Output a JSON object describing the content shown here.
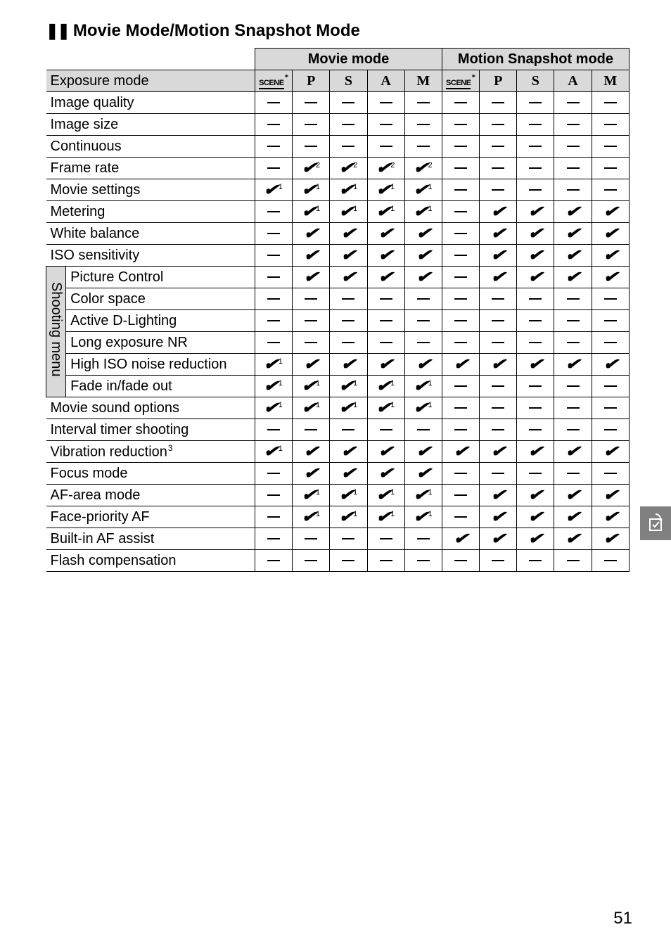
{
  "section_title": "Movie Mode/Motion Snapshot Mode",
  "group_headers": [
    "Movie mode",
    "Motion Snapshot mode"
  ],
  "exposure_columns": [
    {
      "type": "scene",
      "star": "*"
    },
    {
      "type": "text",
      "label": "P"
    },
    {
      "type": "text",
      "label": "S"
    },
    {
      "type": "text",
      "label": "A"
    },
    {
      "type": "text",
      "label": "M"
    },
    {
      "type": "scene",
      "star": "*"
    },
    {
      "type": "text",
      "label": "P"
    },
    {
      "type": "text",
      "label": "S"
    },
    {
      "type": "text",
      "label": "A"
    },
    {
      "type": "text",
      "label": "M"
    }
  ],
  "exposure_row_label": "Exposure mode",
  "vertical_label": "Shooting menu",
  "rows": [
    {
      "label": "Image quality",
      "cells": [
        "d",
        "d",
        "d",
        "d",
        "d",
        "d",
        "d",
        "d",
        "d",
        "d"
      ]
    },
    {
      "label": "Image size",
      "cells": [
        "d",
        "d",
        "d",
        "d",
        "d",
        "d",
        "d",
        "d",
        "d",
        "d"
      ]
    },
    {
      "label": "Continuous",
      "cells": [
        "d",
        "d",
        "d",
        "d",
        "d",
        "d",
        "d",
        "d",
        "d",
        "d"
      ]
    },
    {
      "label": "Frame rate",
      "cells": [
        "d",
        "c2",
        "c2",
        "c2",
        "c2",
        "d",
        "d",
        "d",
        "d",
        "d"
      ]
    },
    {
      "label": "Movie settings",
      "cells": [
        "c1",
        "c1",
        "c1",
        "c1",
        "c1",
        "d",
        "d",
        "d",
        "d",
        "d"
      ]
    },
    {
      "label": "Metering",
      "cells": [
        "d",
        "c1",
        "c1",
        "c1",
        "c1",
        "d",
        "c",
        "c",
        "c",
        "c"
      ]
    },
    {
      "label": "White balance",
      "cells": [
        "d",
        "c",
        "c",
        "c",
        "c",
        "d",
        "c",
        "c",
        "c",
        "c"
      ]
    },
    {
      "label": "ISO sensitivity",
      "cells": [
        "d",
        "c",
        "c",
        "c",
        "c",
        "d",
        "c",
        "c",
        "c",
        "c"
      ]
    },
    {
      "label": "Picture Control",
      "cells": [
        "d",
        "c",
        "c",
        "c",
        "c",
        "d",
        "c",
        "c",
        "c",
        "c"
      ]
    },
    {
      "label": "Color space",
      "cells": [
        "d",
        "d",
        "d",
        "d",
        "d",
        "d",
        "d",
        "d",
        "d",
        "d"
      ]
    },
    {
      "label": "Active D-Lighting",
      "cells": [
        "d",
        "d",
        "d",
        "d",
        "d",
        "d",
        "d",
        "d",
        "d",
        "d"
      ]
    },
    {
      "label": "Long exposure NR",
      "cells": [
        "d",
        "d",
        "d",
        "d",
        "d",
        "d",
        "d",
        "d",
        "d",
        "d"
      ]
    },
    {
      "label": "High ISO noise reduction",
      "cells": [
        "c1",
        "c",
        "c",
        "c",
        "c",
        "c",
        "c",
        "c",
        "c",
        "c"
      ]
    },
    {
      "label": "Fade in/fade out",
      "cells": [
        "c1",
        "c1",
        "c1",
        "c1",
        "c1",
        "d",
        "d",
        "d",
        "d",
        "d"
      ]
    },
    {
      "label": "Movie sound options",
      "cells": [
        "c1",
        "c1",
        "c1",
        "c1",
        "c1",
        "d",
        "d",
        "d",
        "d",
        "d"
      ]
    },
    {
      "label": "Interval timer shooting",
      "cells": [
        "d",
        "d",
        "d",
        "d",
        "d",
        "d",
        "d",
        "d",
        "d",
        "d"
      ]
    },
    {
      "label": "Vibration reduction",
      "label_sup": "3",
      "cells": [
        "c1",
        "c",
        "c",
        "c",
        "c",
        "c",
        "c",
        "c",
        "c",
        "c"
      ]
    },
    {
      "label": "Focus mode",
      "cells": [
        "d",
        "c",
        "c",
        "c",
        "c",
        "d",
        "d",
        "d",
        "d",
        "d"
      ]
    },
    {
      "label": "AF-area mode",
      "cells": [
        "d",
        "c1",
        "c1",
        "c1",
        "c1",
        "d",
        "c",
        "c",
        "c",
        "c"
      ]
    },
    {
      "label": "Face-priority AF",
      "cells": [
        "d",
        "c1",
        "c1",
        "c1",
        "c1",
        "d",
        "c",
        "c",
        "c",
        "c"
      ]
    },
    {
      "label": "Built-in AF assist",
      "cells": [
        "d",
        "d",
        "d",
        "d",
        "d",
        "c",
        "c",
        "c",
        "c",
        "c"
      ]
    },
    {
      "label": "Flash compensation",
      "cells": [
        "d",
        "d",
        "d",
        "d",
        "d",
        "d",
        "d",
        "d",
        "d",
        "d"
      ]
    }
  ],
  "page_number": "51",
  "colors": {
    "header_bg": "#d9d9d9",
    "tab_bg": "#808080",
    "tab_fg": "#ffffff"
  }
}
